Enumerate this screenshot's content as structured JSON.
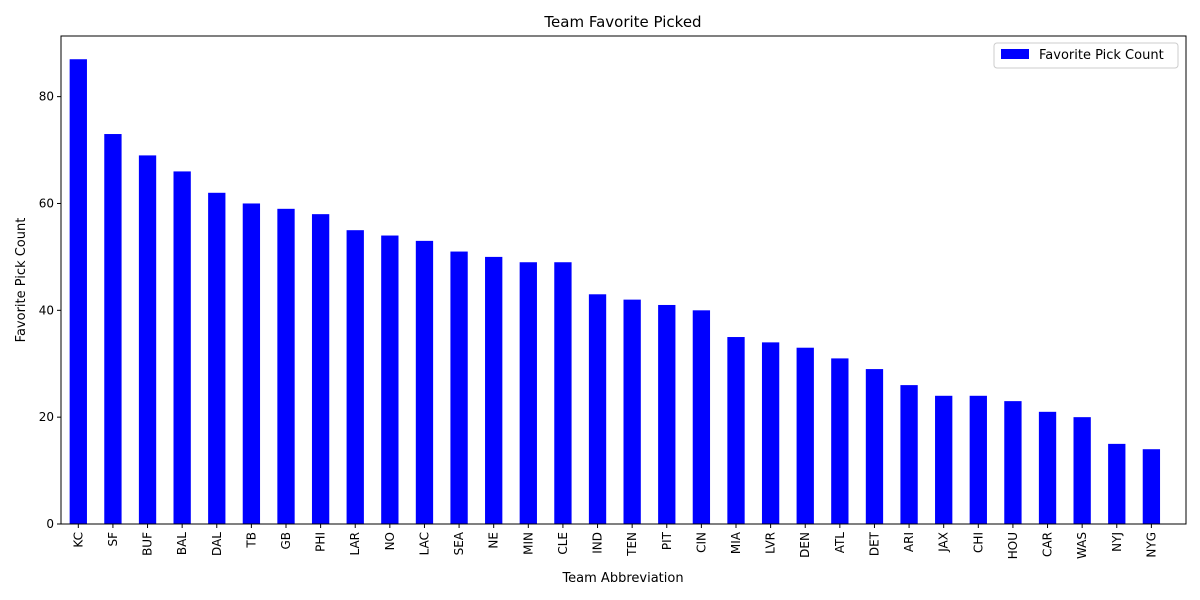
{
  "chart_data": {
    "type": "bar",
    "title": "Team Favorite Picked",
    "xlabel": "Team Abbreviation",
    "ylabel": "Favorite Pick Count",
    "ylim": [
      0,
      91.35
    ],
    "yticks": [
      0,
      20,
      40,
      60,
      80
    ],
    "grid": false,
    "legend_position": "top-right",
    "categories": [
      "KC",
      "SF",
      "BUF",
      "BAL",
      "DAL",
      "TB",
      "GB",
      "PHI",
      "LAR",
      "NO",
      "LAC",
      "SEA",
      "NE",
      "MIN",
      "CLE",
      "IND",
      "TEN",
      "PIT",
      "CIN",
      "MIA",
      "LVR",
      "DEN",
      "ATL",
      "DET",
      "ARI",
      "JAX",
      "CHI",
      "HOU",
      "CAR",
      "WAS",
      "NYJ",
      "NYG"
    ],
    "series": [
      {
        "name": "Favorite Pick Count",
        "color": "#0000ff",
        "values": [
          87,
          73,
          69,
          66,
          62,
          60,
          59,
          58,
          55,
          54,
          53,
          51,
          50,
          49,
          49,
          43,
          42,
          41,
          40,
          35,
          34,
          33,
          31,
          29,
          26,
          24,
          24,
          23,
          21,
          20,
          15,
          14
        ]
      }
    ]
  }
}
